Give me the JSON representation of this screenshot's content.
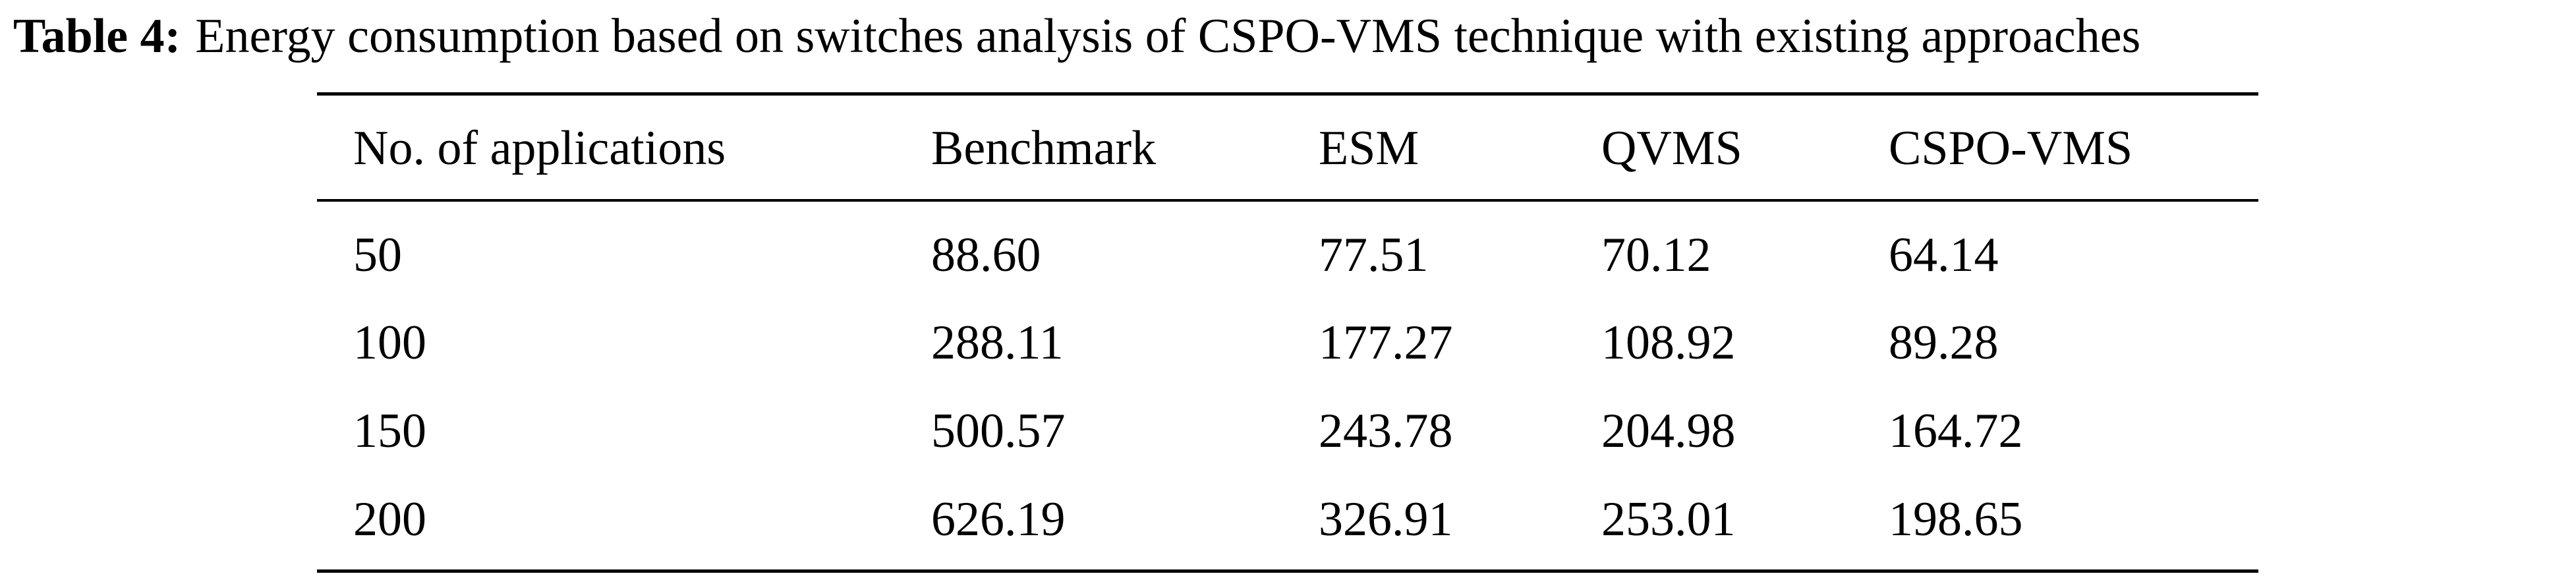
{
  "caption": {
    "label": "Table 4:",
    "text": "Energy consumption based on switches analysis of CSPO-VMS technique with existing approaches"
  },
  "table": {
    "columns": [
      "No. of applications",
      "Benchmark",
      "ESM",
      "QVMS",
      "CSPO-VMS"
    ],
    "rows": [
      [
        "50",
        "88.60",
        "77.51",
        "70.12",
        "64.14"
      ],
      [
        "100",
        "288.11",
        "177.27",
        "108.92",
        "89.28"
      ],
      [
        "150",
        "500.57",
        "243.78",
        "204.98",
        "164.72"
      ],
      [
        "200",
        "626.19",
        "326.91",
        "253.01",
        "198.65"
      ]
    ]
  }
}
